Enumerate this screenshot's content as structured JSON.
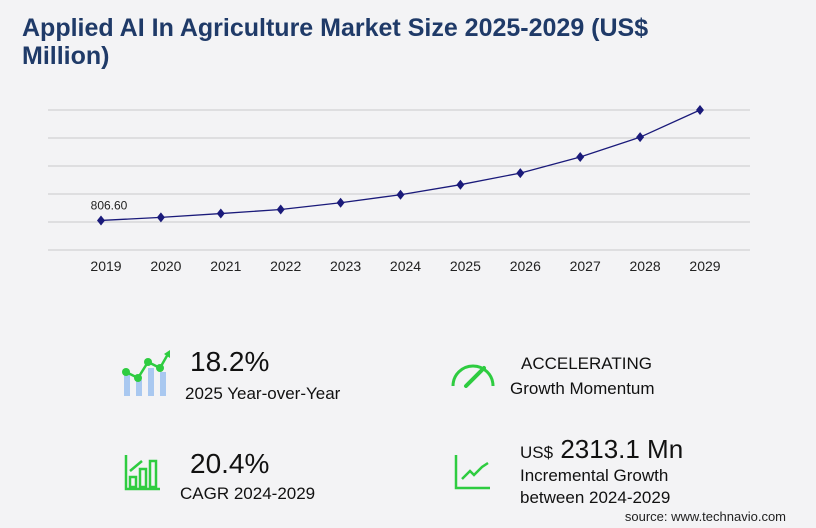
{
  "title": "Applied AI In Agriculture Market Size 2025-2029 (US$ Million)",
  "chart_data": {
    "type": "line",
    "title": "Applied AI In Agriculture Market Size 2025-2029 (US$ Million)",
    "categories": [
      "2019",
      "2020",
      "2021",
      "2022",
      "2023",
      "2024",
      "2025",
      "2026",
      "2027",
      "2028",
      "2029"
    ],
    "values": [
      806.6,
      890,
      995,
      1105,
      1290,
      1509,
      1783,
      2100,
      2540,
      3080,
      3822
    ],
    "data_labels": [
      {
        "index": 0,
        "text": "806.60"
      }
    ],
    "ylim": [
      0,
      3822
    ],
    "grid": true,
    "line_color": "#1a1a7a",
    "marker": "diamond"
  },
  "kpis": {
    "yoy_value": "18.2%",
    "yoy_label": "2025 Year-over-Year",
    "momentum_value": "ACCELERATING",
    "momentum_label": "Growth Momentum",
    "cagr_value": "20.4%",
    "cagr_label": "CAGR 2024-2029",
    "incr_prefix": "US$",
    "incr_value": "2313.1 Mn",
    "incr_label1": "Incremental Growth",
    "incr_label2": "between 2024-2029"
  },
  "source": "source: www.technavio.com",
  "colors": {
    "accent_green": "#2ecc40",
    "bar_blue": "#a9c8f0",
    "title": "#1f3a68"
  },
  "icons": [
    "growth-chart-icon",
    "speedometer-icon",
    "bar-chart-icon",
    "trend-line-icon"
  ]
}
